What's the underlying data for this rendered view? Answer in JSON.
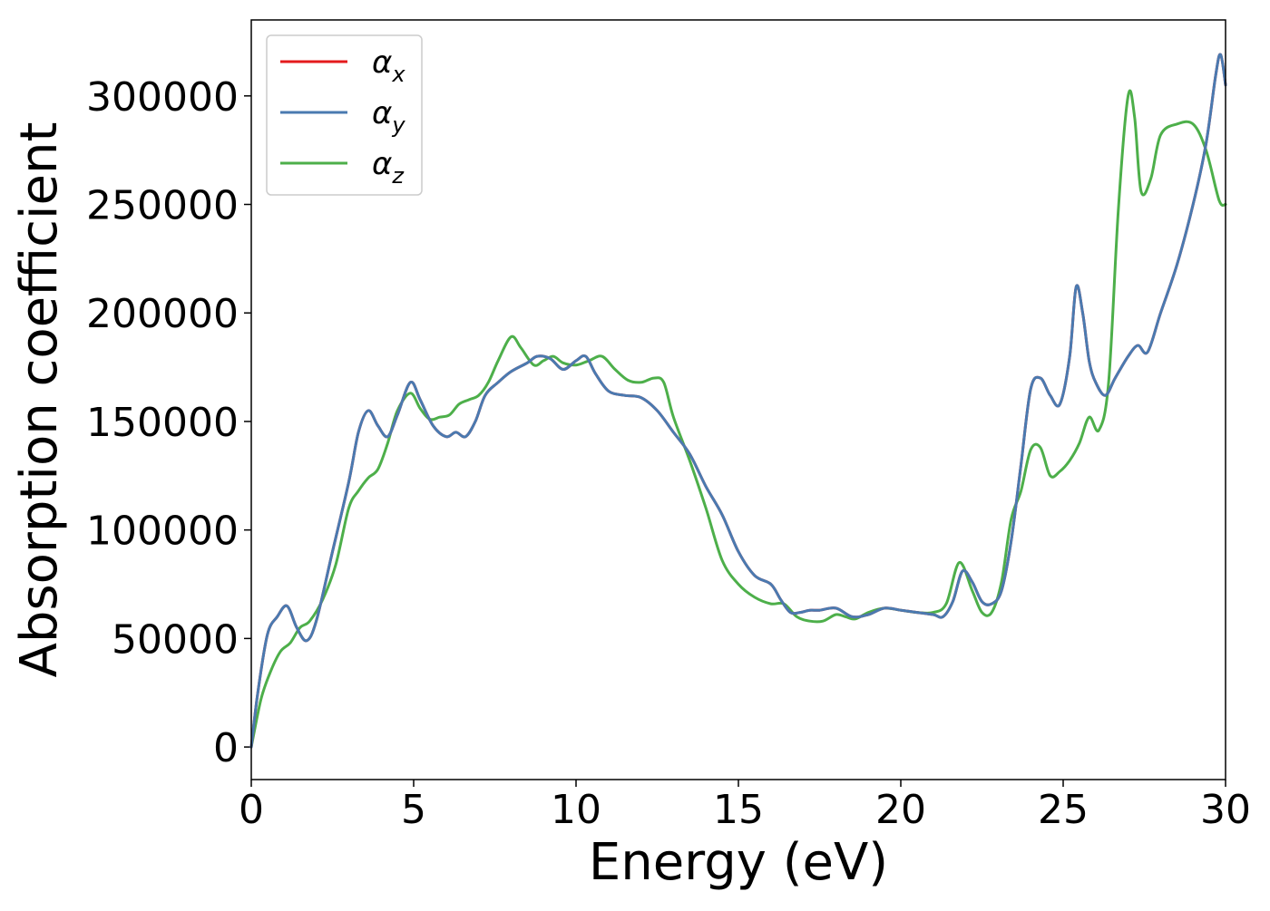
{
  "chart_data": {
    "type": "line",
    "title": "",
    "xlabel": "Energy (eV)",
    "ylabel": "Absorption coefficient",
    "xlim": [
      0,
      30
    ],
    "ylim": [
      -15000,
      335000
    ],
    "xticks": [
      0,
      5,
      10,
      15,
      20,
      25,
      30
    ],
    "yticks": [
      0,
      50000,
      100000,
      150000,
      200000,
      250000,
      300000
    ],
    "grid": false,
    "legend_position": "top-left",
    "series": [
      {
        "name": "α_x",
        "label_main": "α",
        "label_sub": "x",
        "color": "#e41a1c",
        "x": [
          0,
          0.2,
          0.5,
          0.8,
          1.1,
          1.4,
          1.7,
          2.0,
          2.5,
          3.0,
          3.3,
          3.6,
          3.9,
          4.2,
          4.5,
          4.9,
          5.2,
          5.6,
          6.0,
          6.3,
          6.6,
          6.9,
          7.2,
          7.6,
          8.0,
          8.5,
          8.8,
          9.2,
          9.6,
          10.0,
          10.3,
          10.6,
          11.0,
          11.5,
          12.0,
          12.5,
          13.0,
          13.5,
          14.0,
          14.5,
          15.0,
          15.5,
          16.0,
          16.3,
          16.6,
          16.9,
          17.2,
          17.5,
          18.0,
          18.5,
          19.0,
          19.5,
          20.0,
          20.5,
          21.0,
          21.3,
          21.6,
          21.9,
          22.2,
          22.5,
          22.8,
          23.1,
          23.4,
          23.7,
          24.0,
          24.3,
          24.6,
          24.9,
          25.2,
          25.4,
          25.6,
          25.8,
          26.0,
          26.3,
          26.6,
          27.0,
          27.3,
          27.6,
          28.0,
          28.5,
          29.0,
          29.4,
          29.7,
          29.85,
          30.0
        ],
        "y": [
          0,
          25000,
          52000,
          60000,
          65000,
          55000,
          49000,
          58000,
          90000,
          122000,
          145000,
          155000,
          148000,
          143000,
          153000,
          168000,
          160000,
          148000,
          143000,
          145000,
          143000,
          150000,
          162000,
          168000,
          173000,
          177000,
          180000,
          179000,
          174000,
          178000,
          180000,
          172000,
          164000,
          162000,
          161000,
          155000,
          145000,
          135000,
          120000,
          107000,
          90000,
          79000,
          75000,
          68000,
          62000,
          62000,
          63000,
          63000,
          64000,
          60000,
          61000,
          64000,
          63000,
          62000,
          61000,
          60000,
          67000,
          81000,
          76000,
          67000,
          66000,
          72000,
          95000,
          130000,
          165000,
          170000,
          162000,
          158000,
          180000,
          212000,
          200000,
          178000,
          168000,
          162000,
          170000,
          180000,
          185000,
          182000,
          200000,
          222000,
          250000,
          278000,
          310000,
          319000,
          305000
        ]
      },
      {
        "name": "α_y",
        "label_main": "α",
        "label_sub": "y",
        "color": "#4a7ab0",
        "x": [
          0,
          0.2,
          0.5,
          0.8,
          1.1,
          1.4,
          1.7,
          2.0,
          2.5,
          3.0,
          3.3,
          3.6,
          3.9,
          4.2,
          4.5,
          4.9,
          5.2,
          5.6,
          6.0,
          6.3,
          6.6,
          6.9,
          7.2,
          7.6,
          8.0,
          8.5,
          8.8,
          9.2,
          9.6,
          10.0,
          10.3,
          10.6,
          11.0,
          11.5,
          12.0,
          12.5,
          13.0,
          13.5,
          14.0,
          14.5,
          15.0,
          15.5,
          16.0,
          16.3,
          16.6,
          16.9,
          17.2,
          17.5,
          18.0,
          18.5,
          19.0,
          19.5,
          20.0,
          20.5,
          21.0,
          21.3,
          21.6,
          21.9,
          22.2,
          22.5,
          22.8,
          23.1,
          23.4,
          23.7,
          24.0,
          24.3,
          24.6,
          24.9,
          25.2,
          25.4,
          25.6,
          25.8,
          26.0,
          26.3,
          26.6,
          27.0,
          27.3,
          27.6,
          28.0,
          28.5,
          29.0,
          29.4,
          29.7,
          29.85,
          30.0
        ],
        "y": [
          0,
          25000,
          52000,
          60000,
          65000,
          55000,
          49000,
          58000,
          90000,
          122000,
          145000,
          155000,
          148000,
          143000,
          153000,
          168000,
          160000,
          148000,
          143000,
          145000,
          143000,
          150000,
          162000,
          168000,
          173000,
          177000,
          180000,
          179000,
          174000,
          178000,
          180000,
          172000,
          164000,
          162000,
          161000,
          155000,
          145000,
          135000,
          120000,
          107000,
          90000,
          79000,
          75000,
          68000,
          62000,
          62000,
          63000,
          63000,
          64000,
          60000,
          61000,
          64000,
          63000,
          62000,
          61000,
          60000,
          67000,
          81000,
          76000,
          67000,
          66000,
          72000,
          95000,
          130000,
          165000,
          170000,
          162000,
          158000,
          180000,
          212000,
          200000,
          178000,
          168000,
          162000,
          170000,
          180000,
          185000,
          182000,
          200000,
          222000,
          250000,
          278000,
          310000,
          319000,
          305000
        ]
      },
      {
        "name": "α_z",
        "label_main": "α",
        "label_sub": "z",
        "color": "#4daf4a",
        "x": [
          0,
          0.3,
          0.6,
          0.9,
          1.2,
          1.5,
          1.8,
          2.2,
          2.6,
          3.0,
          3.3,
          3.6,
          3.9,
          4.2,
          4.5,
          4.9,
          5.2,
          5.5,
          5.8,
          6.1,
          6.4,
          6.7,
          7.0,
          7.3,
          7.6,
          8.0,
          8.3,
          8.7,
          9.0,
          9.3,
          9.6,
          10.0,
          10.4,
          10.8,
          11.2,
          11.6,
          12.0,
          12.4,
          12.7,
          13.0,
          13.5,
          14.0,
          14.5,
          15.0,
          15.5,
          16.0,
          16.4,
          16.8,
          17.2,
          17.6,
          18.0,
          18.3,
          18.6,
          19.0,
          19.5,
          20.0,
          20.5,
          21.0,
          21.4,
          21.8,
          22.2,
          22.5,
          22.8,
          23.1,
          23.4,
          23.7,
          24.0,
          24.3,
          24.6,
          24.9,
          25.2,
          25.5,
          25.8,
          26.1,
          26.4,
          26.7,
          27.0,
          27.2,
          27.4,
          27.7,
          28.0,
          28.5,
          29.0,
          29.4,
          29.8,
          30.0
        ],
        "y": [
          0,
          22000,
          35000,
          44000,
          48000,
          55000,
          58000,
          68000,
          84000,
          110000,
          118000,
          124000,
          128000,
          140000,
          155000,
          163000,
          156000,
          151000,
          152000,
          153000,
          158000,
          160000,
          162000,
          168000,
          178000,
          189000,
          184000,
          176000,
          178000,
          180000,
          177000,
          176000,
          178000,
          180000,
          174000,
          169000,
          168000,
          170000,
          168000,
          152000,
          132000,
          110000,
          86000,
          75000,
          69000,
          66000,
          66000,
          60000,
          58000,
          58000,
          61000,
          60000,
          59000,
          62000,
          64000,
          63000,
          62000,
          62000,
          66000,
          85000,
          72000,
          62000,
          62000,
          76000,
          105000,
          118000,
          137000,
          138000,
          125000,
          127000,
          132000,
          140000,
          152000,
          146000,
          168000,
          248000,
          300000,
          290000,
          256000,
          262000,
          282000,
          287000,
          287000,
          275000,
          252000,
          250000
        ]
      }
    ]
  }
}
